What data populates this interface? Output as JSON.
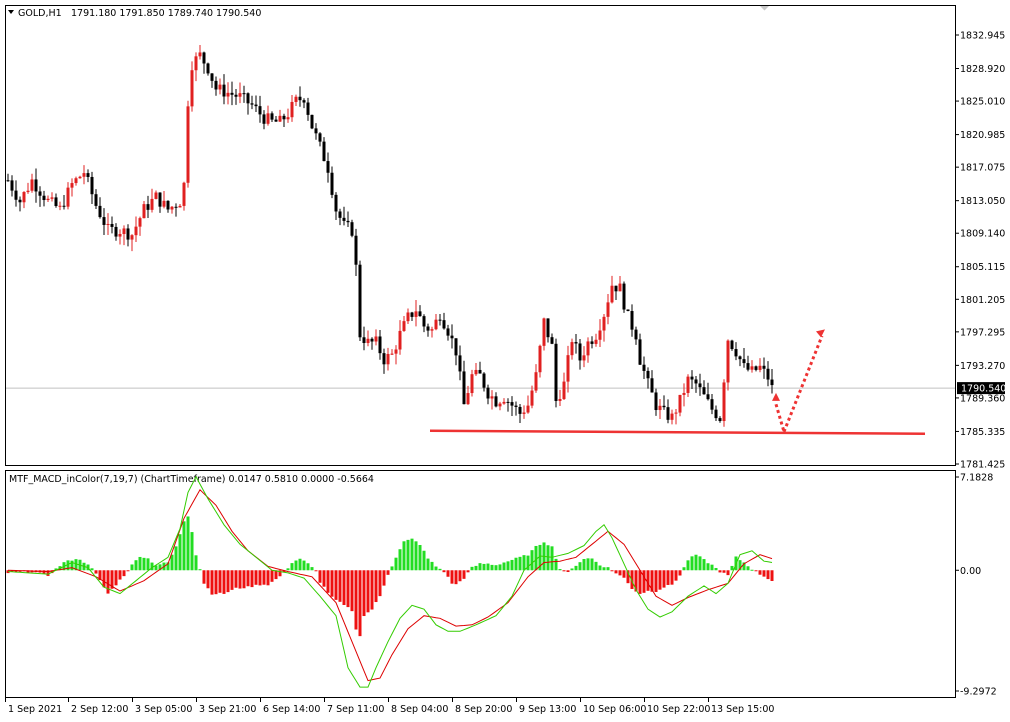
{
  "header": {
    "symbol": "GOLD,H1",
    "ohlc": "1791.180 1791.850 1789.740 1790.540"
  },
  "indicator": {
    "label": "MTF_MACD_inColor(7,19,7) (ChartTimeframe) 0.0147 0.5810 0.0000 -0.5664"
  },
  "colors": {
    "background": "#ffffff",
    "bull_candle": "#e02020",
    "bear_candle": "#000000",
    "hist_positive": "#22dd22",
    "hist_negative": "#ee1111",
    "macd_line": "#33cc00",
    "signal_line": "#dd0000",
    "support_line": "#ee3333",
    "arrow": "#ee3333",
    "bid_line": "#c0c0c0"
  },
  "chart_data": [
    {
      "type": "candlestick",
      "symbol": "GOLD",
      "timeframe": "H1",
      "y_ticks": [
        "1832.945",
        "1828.920",
        "1825.010",
        "1820.985",
        "1817.075",
        "1813.050",
        "1809.140",
        "1805.115",
        "1801.205",
        "1797.295",
        "1793.270",
        "1789.360",
        "1785.335",
        "1781.425"
      ],
      "ylim": [
        1781.0,
        1836.0
      ],
      "x_ticks": [
        "1 Sep 2021",
        "2 Sep 12:00",
        "3 Sep 05:00",
        "3 Sep 21:00",
        "6 Sep 14:00",
        "7 Sep 11:00",
        "8 Sep 04:00",
        "8 Sep 20:00",
        "9 Sep 13:00",
        "10 Sep 06:00",
        "10 Sep 22:00",
        "13 Sep 15:00"
      ],
      "current_price": "1790.540",
      "support_level": 1785.3,
      "anchors": [
        [
          0,
          1815.5
        ],
        [
          3,
          1813.0
        ],
        [
          6,
          1815.5
        ],
        [
          10,
          1813.0
        ],
        [
          13,
          1812.0
        ],
        [
          16,
          1815.0
        ],
        [
          19,
          1816.5
        ],
        [
          22,
          1812.5
        ],
        [
          25,
          1809.5
        ],
        [
          28,
          1809.5
        ],
        [
          31,
          1809.0
        ],
        [
          34,
          1812.0
        ],
        [
          37,
          1813.5
        ],
        [
          40,
          1812.0
        ],
        [
          43,
          1813.0
        ],
        [
          44,
          1815.0
        ],
        [
          45,
          1825.0
        ],
        [
          46,
          1829.5
        ],
        [
          48,
          1830.5
        ],
        [
          50,
          1829.0
        ],
        [
          52,
          1826.5
        ],
        [
          55,
          1826.0
        ],
        [
          58,
          1825.5
        ],
        [
          61,
          1824.5
        ],
        [
          64,
          1823.0
        ],
        [
          66,
          1822.5
        ],
        [
          68,
          1822.5
        ],
        [
          70,
          1823.5
        ],
        [
          72,
          1825.0
        ],
        [
          74,
          1825.5
        ],
        [
          76,
          1822.0
        ],
        [
          78,
          1819.5
        ],
        [
          80,
          1817.0
        ],
        [
          82,
          1812.0
        ],
        [
          84,
          1810.0
        ],
        [
          86,
          1809.5
        ],
        [
          87,
          1805.0
        ],
        [
          88,
          1797.0
        ],
        [
          90,
          1796.0
        ],
        [
          92,
          1796.0
        ],
        [
          94,
          1794.0
        ],
        [
          96,
          1794.5
        ],
        [
          98,
          1797.0
        ],
        [
          100,
          1799.0
        ],
        [
          102,
          1800.0
        ],
        [
          104,
          1798.0
        ],
        [
          106,
          1797.5
        ],
        [
          108,
          1799.5
        ],
        [
          110,
          1797.5
        ],
        [
          112,
          1795.0
        ],
        [
          114,
          1788.5
        ],
        [
          116,
          1792.0
        ],
        [
          118,
          1792.0
        ],
        [
          120,
          1790.0
        ],
        [
          122,
          1789.0
        ],
        [
          124,
          1789.5
        ],
        [
          126,
          1788.5
        ],
        [
          128,
          1787.5
        ],
        [
          130,
          1788.5
        ],
        [
          132,
          1792.0
        ],
        [
          134,
          1798.5
        ],
        [
          136,
          1795.5
        ],
        [
          137,
          1789.0
        ],
        [
          139,
          1791.0
        ],
        [
          141,
          1796.5
        ],
        [
          143,
          1794.0
        ],
        [
          145,
          1796.0
        ],
        [
          147,
          1797.0
        ],
        [
          149,
          1799.5
        ],
        [
          151,
          1803.0
        ],
        [
          153,
          1802.5
        ],
        [
          155,
          1799.0
        ],
        [
          157,
          1797.0
        ],
        [
          158,
          1794.0
        ],
        [
          160,
          1791.0
        ],
        [
          162,
          1788.5
        ],
        [
          164,
          1787.5
        ],
        [
          166,
          1787.0
        ],
        [
          168,
          1789.0
        ],
        [
          170,
          1791.5
        ],
        [
          172,
          1791.0
        ],
        [
          174,
          1789.5
        ],
        [
          176,
          1788.0
        ],
        [
          178,
          1787.0
        ],
        [
          180,
          1796.5
        ],
        [
          182,
          1795.0
        ],
        [
          184,
          1793.0
        ],
        [
          186,
          1792.5
        ],
        [
          188,
          1793.0
        ],
        [
          190,
          1791.8
        ],
        [
          191,
          1790.5
        ]
      ],
      "annotations": [
        "horizontal support line at ~1785.3",
        "dotted arrow down then up toward ~1797.5"
      ]
    },
    {
      "type": "bar+line",
      "name": "MTF_MACD_inColor(7,19,7)",
      "y_ticks": [
        "7.1828",
        "0.00",
        "-9.2972"
      ],
      "ylim": [
        -9.2972,
        7.1828
      ],
      "histogram_anchors": [
        [
          0,
          -0.2
        ],
        [
          6,
          -0.1
        ],
        [
          10,
          -0.4
        ],
        [
          14,
          0.6
        ],
        [
          17,
          0.9
        ],
        [
          20,
          0.5
        ],
        [
          22,
          -0.3
        ],
        [
          25,
          -1.8
        ],
        [
          27,
          -1.1
        ],
        [
          29,
          -0.4
        ],
        [
          31,
          0.4
        ],
        [
          33,
          1.1
        ],
        [
          35,
          0.9
        ],
        [
          37,
          0.4
        ],
        [
          40,
          0.6
        ],
        [
          42,
          1.8
        ],
        [
          44,
          3.8
        ],
        [
          45,
          4.2
        ],
        [
          46,
          3.0
        ],
        [
          47,
          1.2
        ],
        [
          48,
          0.1
        ],
        [
          49,
          -1.0
        ],
        [
          51,
          -1.8
        ],
        [
          54,
          -1.8
        ],
        [
          57,
          -1.4
        ],
        [
          60,
          -1.3
        ],
        [
          63,
          -1.1
        ],
        [
          65,
          -1.1
        ],
        [
          67,
          -0.7
        ],
        [
          69,
          -0.2
        ],
        [
          71,
          0.6
        ],
        [
          73,
          0.9
        ],
        [
          75,
          0.5
        ],
        [
          77,
          -0.1
        ],
        [
          78,
          -0.9
        ],
        [
          81,
          -2.1
        ],
        [
          84,
          -2.7
        ],
        [
          86,
          -3.1
        ],
        [
          87,
          -4.6
        ],
        [
          88,
          -5.0
        ],
        [
          89,
          -3.5
        ],
        [
          91,
          -3.0
        ],
        [
          93,
          -2.0
        ],
        [
          95,
          -0.3
        ],
        [
          97,
          1.0
        ],
        [
          99,
          2.2
        ],
        [
          101,
          2.4
        ],
        [
          103,
          2.0
        ],
        [
          105,
          0.9
        ],
        [
          107,
          0.3
        ],
        [
          109,
          -0.1
        ],
        [
          111,
          -1.0
        ],
        [
          112,
          -1.1
        ],
        [
          114,
          -0.6
        ],
        [
          116,
          0.2
        ],
        [
          118,
          0.5
        ],
        [
          120,
          0.5
        ],
        [
          122,
          0.4
        ],
        [
          124,
          0.6
        ],
        [
          126,
          0.8
        ],
        [
          128,
          1.0
        ],
        [
          130,
          1.2
        ],
        [
          132,
          1.8
        ],
        [
          134,
          2.2
        ],
        [
          136,
          1.8
        ],
        [
          138,
          0.1
        ],
        [
          140,
          -0.2
        ],
        [
          142,
          0.4
        ],
        [
          144,
          0.9
        ],
        [
          146,
          0.9
        ],
        [
          148,
          0.4
        ],
        [
          150,
          0.2
        ],
        [
          152,
          -0.2
        ],
        [
          154,
          -0.6
        ],
        [
          156,
          -1.4
        ],
        [
          158,
          -1.8
        ],
        [
          160,
          -1.6
        ],
        [
          162,
          -1.6
        ],
        [
          164,
          -1.3
        ],
        [
          166,
          -1.1
        ],
        [
          168,
          -0.4
        ],
        [
          170,
          0.8
        ],
        [
          172,
          1.2
        ],
        [
          174,
          0.8
        ],
        [
          176,
          0.4
        ],
        [
          178,
          -0.1
        ],
        [
          180,
          -0.4
        ],
        [
          182,
          1.0
        ],
        [
          184,
          0.6
        ],
        [
          186,
          0.1
        ],
        [
          188,
          -0.3
        ],
        [
          191,
          -0.8
        ]
      ],
      "macd_anchors": [
        [
          0,
          -0.1
        ],
        [
          10,
          -0.3
        ],
        [
          16,
          0.6
        ],
        [
          20,
          0.2
        ],
        [
          24,
          -1.3
        ],
        [
          28,
          -1.8
        ],
        [
          32,
          -0.8
        ],
        [
          36,
          0.2
        ],
        [
          40,
          1.0
        ],
        [
          43,
          3.2
        ],
        [
          45,
          6.0
        ],
        [
          47,
          7.2
        ],
        [
          50,
          5.5
        ],
        [
          54,
          3.5
        ],
        [
          58,
          2.0
        ],
        [
          62,
          1.0
        ],
        [
          66,
          0.0
        ],
        [
          70,
          -0.2
        ],
        [
          74,
          -0.6
        ],
        [
          78,
          -2.0
        ],
        [
          82,
          -3.5
        ],
        [
          85,
          -7.5
        ],
        [
          88,
          -9.0
        ],
        [
          90,
          -9.0
        ],
        [
          92,
          -7.5
        ],
        [
          95,
          -5.5
        ],
        [
          98,
          -3.7
        ],
        [
          101,
          -2.7
        ],
        [
          104,
          -3.0
        ],
        [
          107,
          -4.2
        ],
        [
          110,
          -4.7
        ],
        [
          113,
          -4.7
        ],
        [
          117,
          -4.2
        ],
        [
          122,
          -3.5
        ],
        [
          126,
          -2.0
        ],
        [
          129,
          0.0
        ],
        [
          133,
          1.1
        ],
        [
          136,
          1.0
        ],
        [
          140,
          1.3
        ],
        [
          144,
          1.9
        ],
        [
          147,
          3.0
        ],
        [
          149,
          3.5
        ],
        [
          151,
          2.5
        ],
        [
          154,
          0.5
        ],
        [
          157,
          -1.5
        ],
        [
          160,
          -3.0
        ],
        [
          163,
          -3.6
        ],
        [
          166,
          -3.2
        ],
        [
          170,
          -2.0
        ],
        [
          174,
          -1.2
        ],
        [
          177,
          -1.8
        ],
        [
          180,
          -1.0
        ],
        [
          183,
          1.2
        ],
        [
          186,
          1.5
        ],
        [
          189,
          0.7
        ],
        [
          191,
          0.6
        ]
      ],
      "signal_anchors": [
        [
          0,
          0.0
        ],
        [
          10,
          -0.1
        ],
        [
          16,
          0.2
        ],
        [
          22,
          -0.5
        ],
        [
          28,
          -1.6
        ],
        [
          34,
          -0.8
        ],
        [
          40,
          0.5
        ],
        [
          44,
          4.0
        ],
        [
          48,
          6.2
        ],
        [
          52,
          5.0
        ],
        [
          56,
          3.0
        ],
        [
          60,
          1.5
        ],
        [
          65,
          0.3
        ],
        [
          70,
          -0.1
        ],
        [
          76,
          -0.5
        ],
        [
          82,
          -2.5
        ],
        [
          86,
          -5.5
        ],
        [
          90,
          -8.5
        ],
        [
          93,
          -8.3
        ],
        [
          96,
          -6.5
        ],
        [
          100,
          -4.5
        ],
        [
          104,
          -3.5
        ],
        [
          108,
          -3.7
        ],
        [
          112,
          -4.3
        ],
        [
          116,
          -4.2
        ],
        [
          120,
          -3.6
        ],
        [
          125,
          -2.5
        ],
        [
          130,
          -0.5
        ],
        [
          134,
          0.6
        ],
        [
          138,
          0.7
        ],
        [
          142,
          1.0
        ],
        [
          146,
          2.0
        ],
        [
          150,
          3.0
        ],
        [
          154,
          2.0
        ],
        [
          158,
          0.0
        ],
        [
          162,
          -2.0
        ],
        [
          166,
          -2.7
        ],
        [
          170,
          -2.1
        ],
        [
          175,
          -1.5
        ],
        [
          180,
          -1.0
        ],
        [
          184,
          0.5
        ],
        [
          188,
          1.2
        ],
        [
          191,
          0.9
        ]
      ]
    }
  ]
}
